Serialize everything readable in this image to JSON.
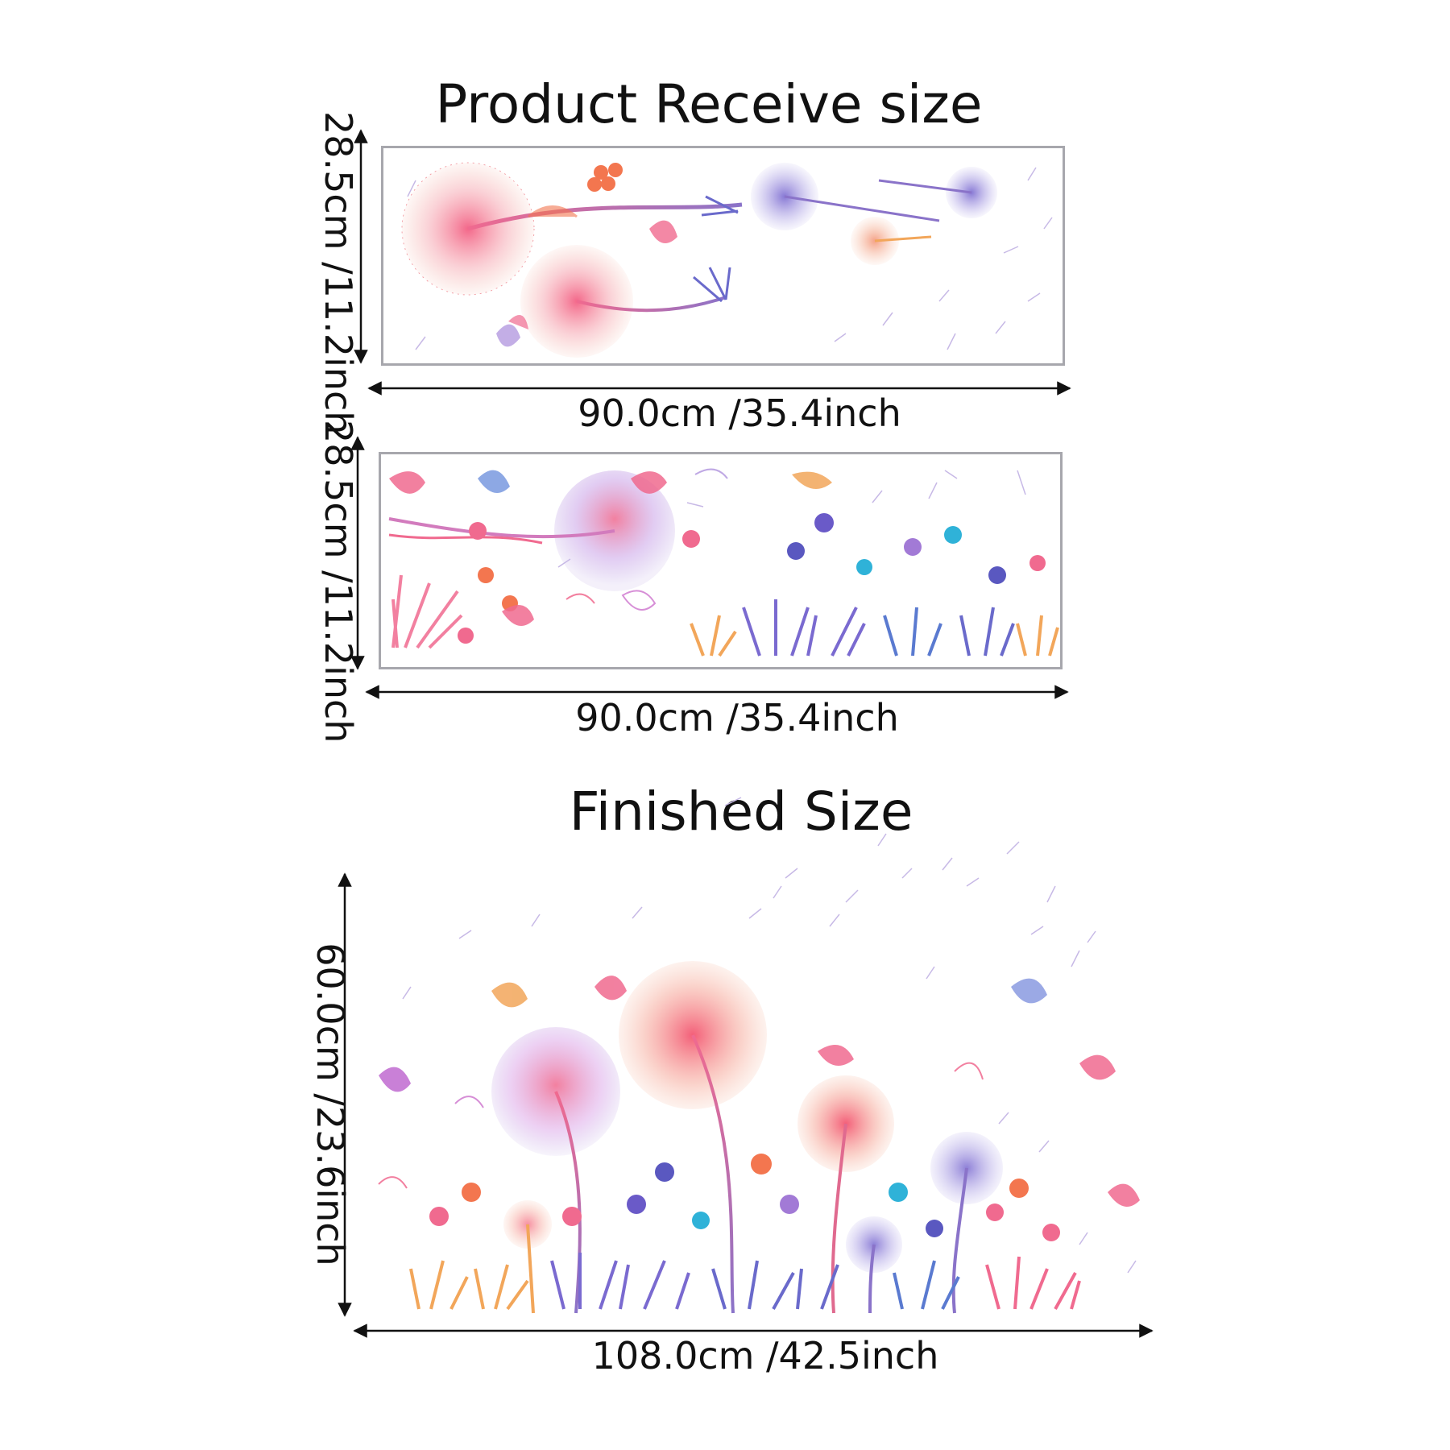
{
  "receive": {
    "heading": "Product Receive size",
    "sheet1": {
      "width_label": "90.0cm /35.4inch",
      "height_label": "28.5cm /11.2inch"
    },
    "sheet2": {
      "width_label": "90.0cm /35.4inch",
      "height_label": "28.5cm /11.2inch"
    }
  },
  "finished": {
    "heading": "Finished Size",
    "width_label": "108.0cm /42.5inch",
    "height_label": "60.0cm /23.6inch"
  },
  "colors": {
    "panel_border": "#a7a7ad",
    "pink": "#f06a8f",
    "coral": "#f3764f",
    "purple": "#8a73c9",
    "blue": "#4aa6dc",
    "orange": "#f2a65a",
    "lilac": "#b49ae0"
  },
  "icons": [
    "dandelion-icon",
    "butterfly-icon",
    "flower-icon",
    "grass-icon",
    "seed-icon",
    "arrow-icon"
  ]
}
